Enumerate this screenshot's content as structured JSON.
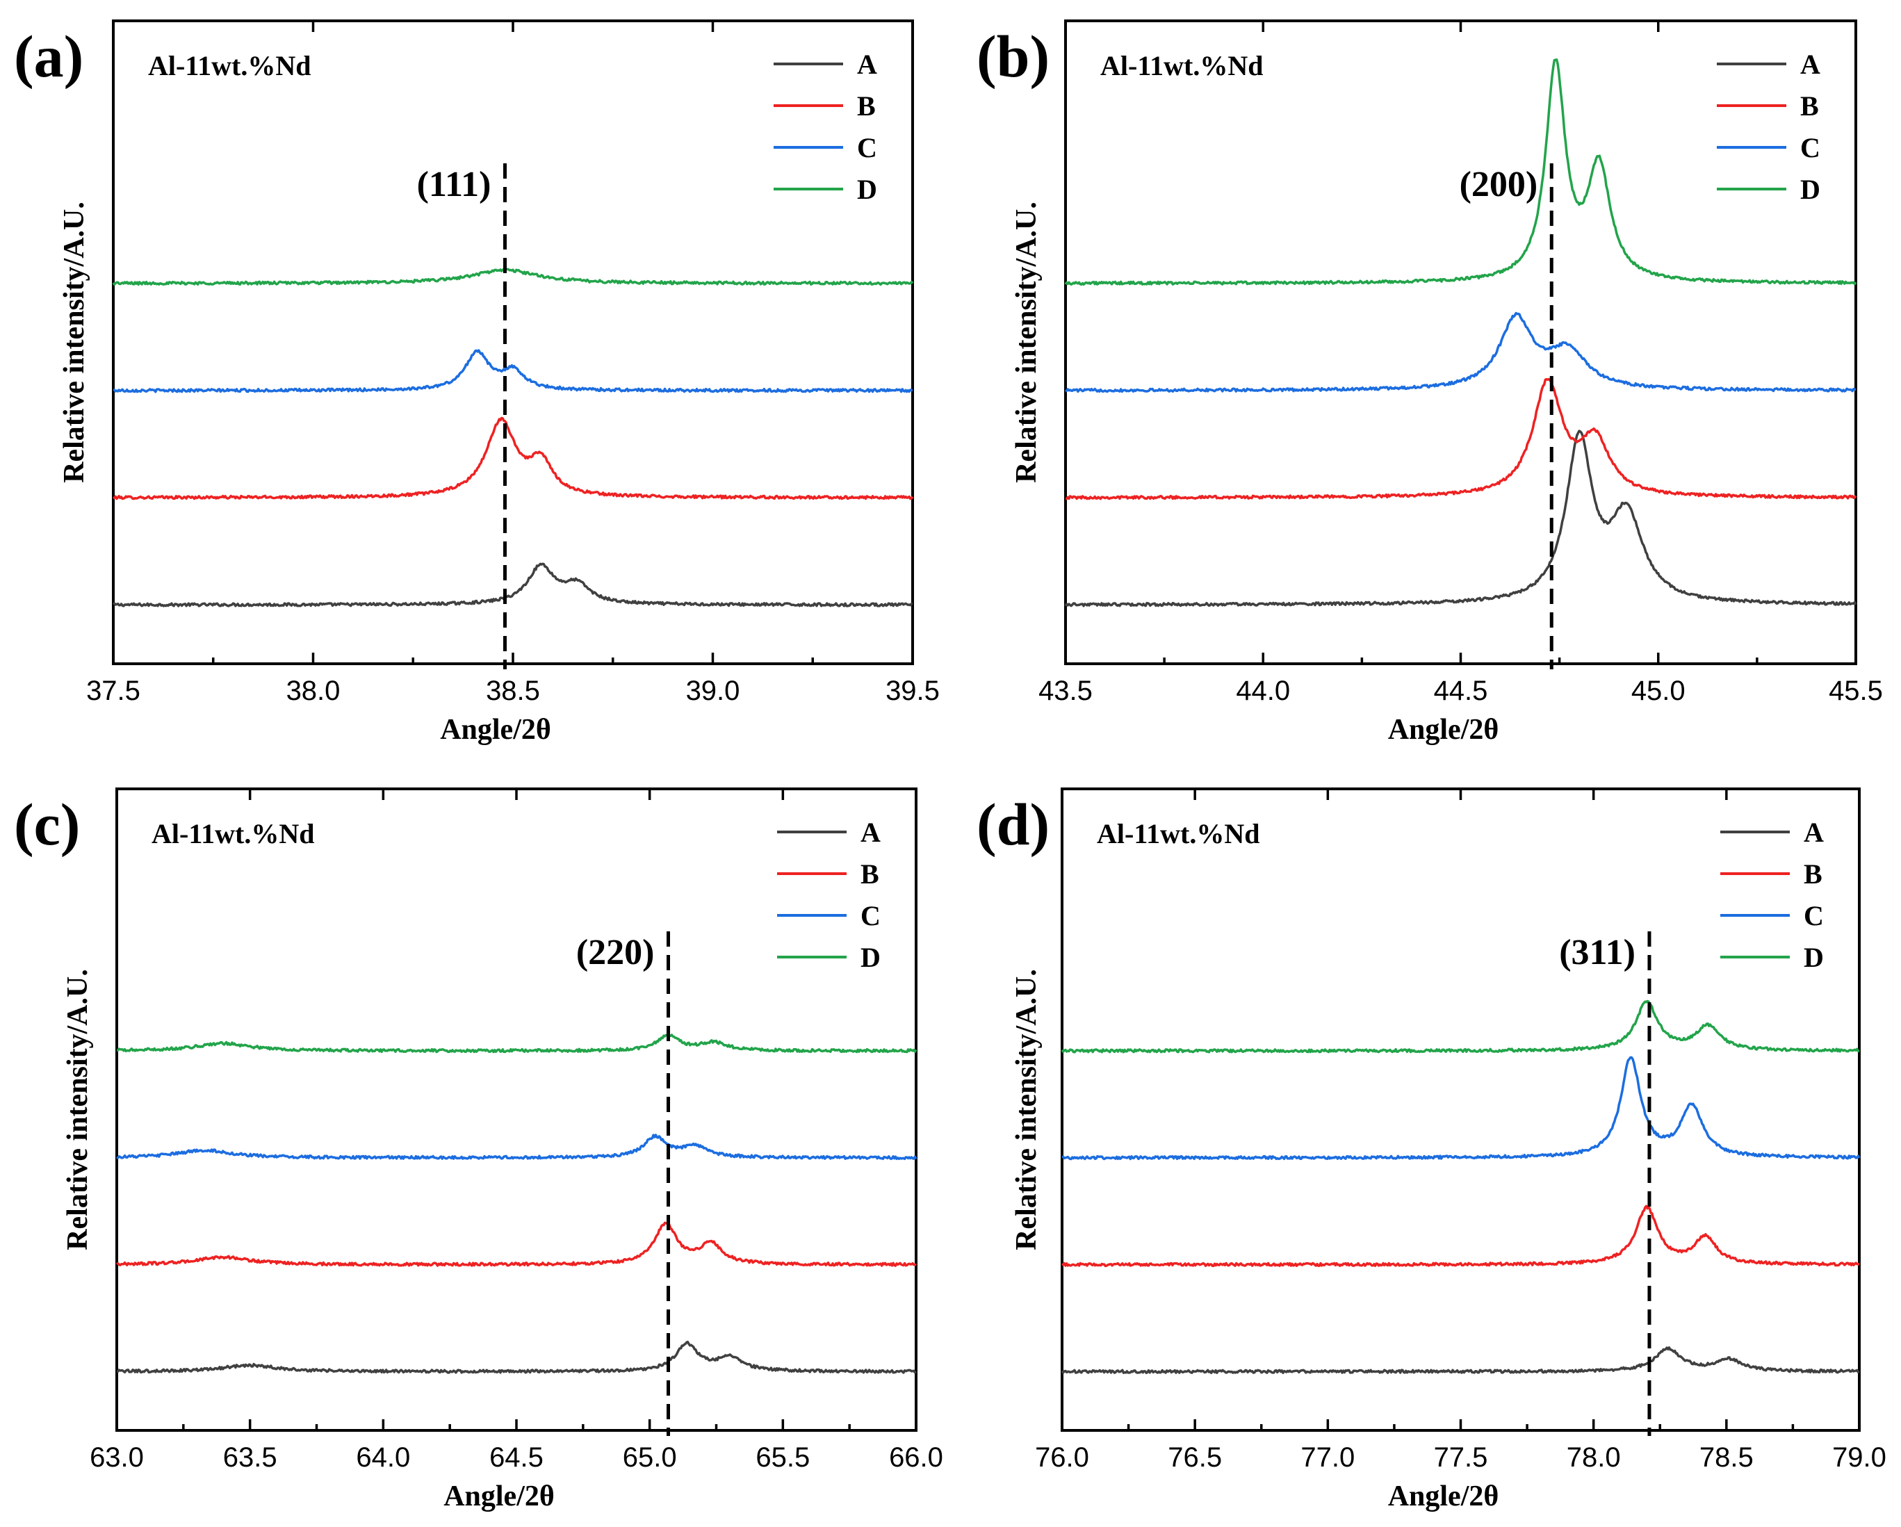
{
  "figure": {
    "panel_letters": [
      "(a)",
      "(b)",
      "(c)",
      "(d)"
    ]
  },
  "legend": {
    "entries": [
      {
        "name": "A",
        "color": "#404040"
      },
      {
        "name": "B",
        "color": "#ee2222"
      },
      {
        "name": "C",
        "color": "#1c6de0"
      },
      {
        "name": "D",
        "color": "#22a44a"
      }
    ]
  },
  "chart_data": [
    {
      "type": "line",
      "panel": "(a)",
      "sample": "Al-11wt.%Nd",
      "xlabel": "Angle/2θ",
      "ylabel": "Relative intensity/A.U.",
      "xlim": [
        37.5,
        39.5
      ],
      "ylim": [
        0,
        12
      ],
      "xticks": [
        37.5,
        38.0,
        38.5,
        39.0,
        39.5
      ],
      "tick_labels": [
        "37.5",
        "38.0",
        "38.5",
        "39.0",
        "39.5"
      ],
      "ref_line": {
        "x": 38.48,
        "label": "(111)"
      },
      "series": [
        {
          "name": "A",
          "baseline": 1.1,
          "peaks": [
            {
              "center": 38.57,
              "height": 0.7,
              "width": 0.04
            },
            {
              "center": 38.66,
              "height": 0.35,
              "width": 0.04
            }
          ]
        },
        {
          "name": "B",
          "baseline": 3.1,
          "peaks": [
            {
              "center": 38.47,
              "height": 1.4,
              "width": 0.045
            },
            {
              "center": 38.57,
              "height": 0.6,
              "width": 0.035
            }
          ]
        },
        {
          "name": "C",
          "baseline": 5.1,
          "peaks": [
            {
              "center": 38.41,
              "height": 0.7,
              "width": 0.035
            },
            {
              "center": 38.5,
              "height": 0.35,
              "width": 0.035
            }
          ]
        },
        {
          "name": "D",
          "baseline": 7.1,
          "peaks": [
            {
              "center": 38.48,
              "height": 0.25,
              "width": 0.1
            }
          ]
        }
      ]
    },
    {
      "type": "line",
      "panel": "(b)",
      "sample": "Al-11wt.%Nd",
      "xlabel": "Angle/2θ",
      "ylabel": "Relative intensity/A.U.",
      "xlim": [
        43.5,
        45.5
      ],
      "ylim": [
        0,
        12
      ],
      "xticks": [
        43.5,
        44.0,
        44.5,
        45.0,
        45.5
      ],
      "tick_labels": [
        "43.5",
        "44.0",
        "44.5",
        "45.0",
        "45.5"
      ],
      "ref_line": {
        "x": 44.73,
        "label": "(200)"
      },
      "series": [
        {
          "name": "A",
          "baseline": 1.1,
          "peaks": [
            {
              "center": 44.8,
              "height": 3.0,
              "width": 0.04
            },
            {
              "center": 44.92,
              "height": 1.6,
              "width": 0.05
            }
          ]
        },
        {
          "name": "B",
          "baseline": 3.1,
          "peaks": [
            {
              "center": 44.72,
              "height": 2.1,
              "width": 0.045
            },
            {
              "center": 44.84,
              "height": 1.0,
              "width": 0.045
            }
          ]
        },
        {
          "name": "C",
          "baseline": 5.1,
          "peaks": [
            {
              "center": 44.64,
              "height": 1.3,
              "width": 0.05
            },
            {
              "center": 44.77,
              "height": 0.7,
              "width": 0.06
            }
          ]
        },
        {
          "name": "D",
          "baseline": 7.1,
          "peaks": [
            {
              "center": 44.74,
              "height": 4.0,
              "width": 0.03
            },
            {
              "center": 44.85,
              "height": 2.1,
              "width": 0.035
            }
          ]
        }
      ]
    },
    {
      "type": "line",
      "panel": "(c)",
      "sample": "Al-11wt.%Nd",
      "xlabel": "Angle/2θ",
      "ylabel": "Relative intensity/A.U.",
      "xlim": [
        63.0,
        66.0
      ],
      "ylim": [
        0,
        12
      ],
      "xticks": [
        63.0,
        63.5,
        64.0,
        64.5,
        65.0,
        65.5,
        66.0
      ],
      "tick_labels": [
        "63.0",
        "63.5",
        "64.0",
        "64.5",
        "65.0",
        "65.5",
        "66.0"
      ],
      "ref_line": {
        "x": 65.07,
        "label": "(220)"
      },
      "series": [
        {
          "name": "A",
          "baseline": 1.1,
          "peaks": [
            {
              "center": 63.5,
              "height": 0.12,
              "width": 0.12
            },
            {
              "center": 65.14,
              "height": 0.5,
              "width": 0.05
            },
            {
              "center": 65.3,
              "height": 0.25,
              "width": 0.06
            }
          ]
        },
        {
          "name": "B",
          "baseline": 3.1,
          "peaks": [
            {
              "center": 63.4,
              "height": 0.14,
              "width": 0.12
            },
            {
              "center": 65.06,
              "height": 0.75,
              "width": 0.05
            },
            {
              "center": 65.23,
              "height": 0.38,
              "width": 0.05
            }
          ]
        },
        {
          "name": "C",
          "baseline": 5.1,
          "peaks": [
            {
              "center": 63.33,
              "height": 0.14,
              "width": 0.12
            },
            {
              "center": 65.02,
              "height": 0.38,
              "width": 0.05
            },
            {
              "center": 65.17,
              "height": 0.2,
              "width": 0.06
            }
          ]
        },
        {
          "name": "D",
          "baseline": 7.1,
          "peaks": [
            {
              "center": 63.4,
              "height": 0.14,
              "width": 0.12
            },
            {
              "center": 65.07,
              "height": 0.28,
              "width": 0.05
            },
            {
              "center": 65.24,
              "height": 0.15,
              "width": 0.06
            }
          ]
        }
      ]
    },
    {
      "type": "line",
      "panel": "(d)",
      "sample": "Al-11wt.%Nd",
      "xlabel": "Angle/2θ",
      "ylabel": "Relative intensity/A.U.",
      "xlim": [
        76.0,
        79.0
      ],
      "ylim": [
        0,
        12
      ],
      "xticks": [
        76.0,
        76.5,
        77.0,
        77.5,
        78.0,
        78.5,
        79.0
      ],
      "tick_labels": [
        "76.0",
        "76.5",
        "77.0",
        "77.5",
        "78.0",
        "78.5",
        "79.0"
      ],
      "ref_line": {
        "x": 78.21,
        "label": "(311)"
      },
      "series": [
        {
          "name": "A",
          "baseline": 1.1,
          "peaks": [
            {
              "center": 78.28,
              "height": 0.42,
              "width": 0.06
            },
            {
              "center": 78.51,
              "height": 0.22,
              "width": 0.06
            }
          ]
        },
        {
          "name": "B",
          "baseline": 3.1,
          "peaks": [
            {
              "center": 78.2,
              "height": 1.05,
              "width": 0.05
            },
            {
              "center": 78.42,
              "height": 0.5,
              "width": 0.05
            }
          ]
        },
        {
          "name": "C",
          "baseline": 5.1,
          "peaks": [
            {
              "center": 78.14,
              "height": 1.85,
              "width": 0.045
            },
            {
              "center": 78.37,
              "height": 0.95,
              "width": 0.05
            }
          ]
        },
        {
          "name": "D",
          "baseline": 7.1,
          "peaks": [
            {
              "center": 78.2,
              "height": 0.9,
              "width": 0.05
            },
            {
              "center": 78.43,
              "height": 0.45,
              "width": 0.055
            }
          ]
        }
      ]
    }
  ]
}
